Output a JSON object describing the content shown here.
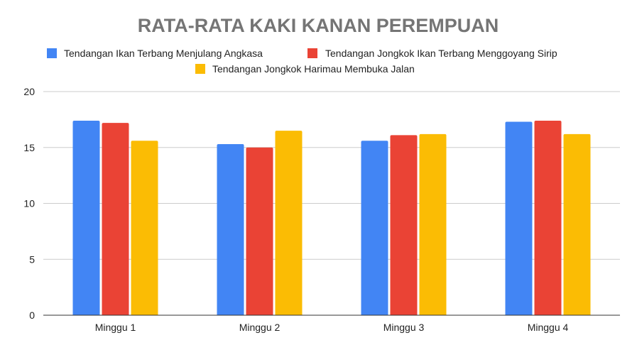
{
  "chart_data": {
    "type": "bar",
    "title": "RATA-RATA KAKI KANAN PEREMPUAN",
    "xlabel": "",
    "ylabel": "",
    "categories": [
      "Minggu 1",
      "Minggu 2",
      "Minggu 3",
      "Minggu 4"
    ],
    "ylim": [
      0,
      20
    ],
    "yticks": [
      0,
      5,
      10,
      15,
      20
    ],
    "grid": true,
    "legend_position": "top",
    "series": [
      {
        "name": "Tendangan Ikan Terbang Menjulang Angkasa",
        "color": "#4285F4",
        "values": [
          17.4,
          15.3,
          15.6,
          17.3
        ]
      },
      {
        "name": "Tendangan Jongkok Ikan Terbang Menggoyang Sirip",
        "color": "#EA4335",
        "values": [
          17.2,
          15.0,
          16.1,
          17.4
        ]
      },
      {
        "name": "Tendangan Jongkok Harimau Membuka Jalan",
        "color": "#FBBC04",
        "values": [
          15.6,
          16.5,
          16.2,
          16.2
        ]
      }
    ]
  }
}
